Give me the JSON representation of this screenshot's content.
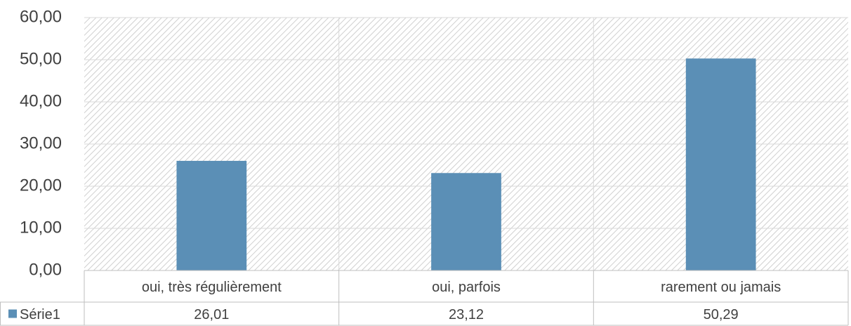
{
  "chart_data": {
    "type": "bar",
    "categories": [
      "oui, très régulièrement",
      "oui, parfois",
      "rarement ou jamais"
    ],
    "series": [
      {
        "name": "Série1",
        "color": "#5b8fb6",
        "values": [
          26.01,
          23.12,
          50.29
        ],
        "value_labels": [
          "26,01",
          "23,12",
          "50,29"
        ]
      }
    ],
    "ylim": [
      0,
      60
    ],
    "yticks": [
      {
        "value": 0,
        "label": "0,00"
      },
      {
        "value": 10,
        "label": "10,00"
      },
      {
        "value": 20,
        "label": "20,00"
      },
      {
        "value": 30,
        "label": "30,00"
      },
      {
        "value": 40,
        "label": "40,00"
      },
      {
        "value": 50,
        "label": "50,00"
      },
      {
        "value": 60,
        "label": "60,00"
      }
    ],
    "grid": true
  }
}
